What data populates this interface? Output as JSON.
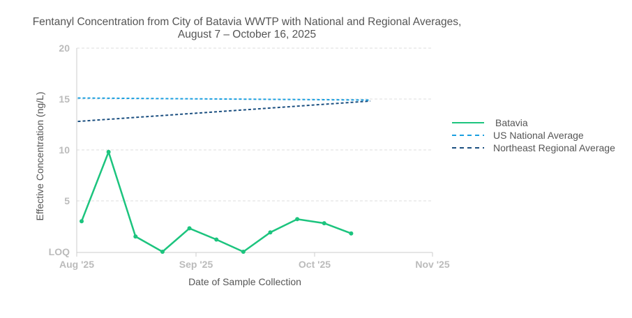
{
  "chart_data": {
    "type": "line",
    "title_line1": "Fentanyl Concentration from City of Batavia WWTP with National and Regional Averages,",
    "title_line2": "August 7 – October 16, 2025",
    "xlabel": "Date of Sample Collection",
    "ylabel": "Effective Concentration (ng/L)",
    "ylim": [
      0,
      20
    ],
    "y_ticks": [
      {
        "v": 0,
        "label": "LOQ"
      },
      {
        "v": 5,
        "label": "5"
      },
      {
        "v": 10,
        "label": "10"
      },
      {
        "v": 15,
        "label": "15"
      },
      {
        "v": 20,
        "label": "20"
      }
    ],
    "x_ticks": [
      "Aug '25",
      "Sep '25",
      "Oct '25",
      "Nov '25"
    ],
    "grid": true,
    "legend_position": "right",
    "series": [
      {
        "name": "Batavia",
        "color": "#1cc47e",
        "style": "solid",
        "x": [
          "2025-08-07",
          "2025-08-14",
          "2025-08-21",
          "2025-08-28",
          "2025-09-04",
          "2025-09-11",
          "2025-09-18",
          "2025-09-25",
          "2025-10-02",
          "2025-10-09",
          "2025-10-16"
        ],
        "y": [
          3.0,
          9.8,
          1.5,
          0,
          2.3,
          1.2,
          0,
          1.9,
          3.2,
          2.8,
          1.8
        ]
      },
      {
        "name": "US National Average",
        "color": "#1a9fe0",
        "style": "dashed",
        "x": [
          "2025-08-06",
          "2025-10-21"
        ],
        "y": [
          15.1,
          14.9
        ]
      },
      {
        "name": "Northeast Regional Average",
        "color": "#1b4f80",
        "style": "dashed",
        "x": [
          "2025-08-06",
          "2025-10-21"
        ],
        "y": [
          12.8,
          14.8
        ]
      }
    ]
  }
}
